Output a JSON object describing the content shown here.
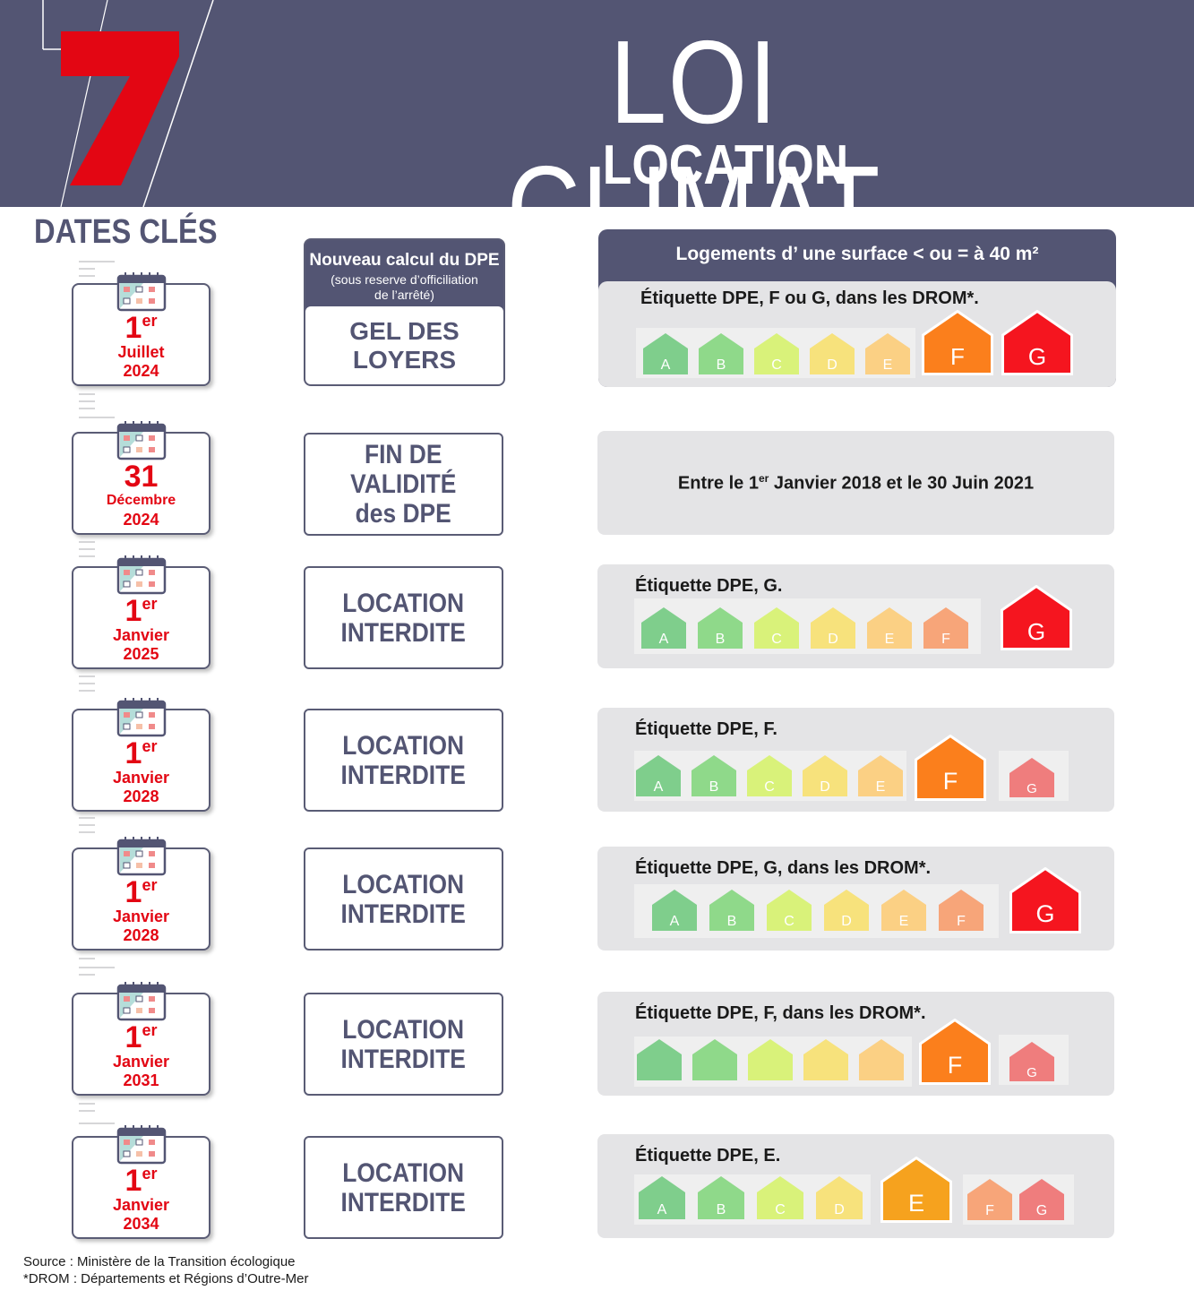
{
  "header": {
    "number": "7",
    "title": "LOI CLIMAT",
    "subtitle": "LOCATION",
    "section": "DATES CLÉS"
  },
  "colors": {
    "header_bg": "#535573",
    "accent_red": "#e30613",
    "A": "#7fce8c",
    "B": "#8fd98a",
    "C": "#d9f27a",
    "D": "#f7e27c",
    "E": "#fbd084",
    "F": "#f7a579",
    "G": "#ef7d7d",
    "F_active": "#fb7f1c",
    "G_active": "#f5151f",
    "E_active": "#f6a21e"
  },
  "rows": [
    {
      "day": "1",
      "sup": "er",
      "month": "Juillet",
      "year": "2024"
    },
    {
      "day": "31",
      "sup": "",
      "month": "Décembre",
      "year": "2024"
    },
    {
      "day": "1",
      "sup": "er",
      "month": "Janvier",
      "year": "2025"
    },
    {
      "day": "1",
      "sup": "er",
      "month": "Janvier",
      "year": "2028"
    },
    {
      "day": "1",
      "sup": "er",
      "month": "Janvier",
      "year": "2028"
    },
    {
      "day": "1",
      "sup": "er",
      "month": "Janvier",
      "year": "2031"
    },
    {
      "day": "1",
      "sup": "er",
      "month": "Janvier",
      "year": "2034"
    }
  ],
  "calc": {
    "title": "Nouveau calcul du DPE",
    "note1": "(sous reserve d’officiliation",
    "note2": "de l’arrêté)",
    "line1": "GEL DES",
    "line2": "LOYERS"
  },
  "mid": [
    {
      "line1": "FIN DE",
      "line2": "VALIDITÉ",
      "line3": "des DPE"
    },
    {
      "line1": "LOCATION",
      "line2": "INTERDITE"
    },
    {
      "line1": "LOCATION",
      "line2": "INTERDITE"
    },
    {
      "line1": "LOCATION",
      "line2": "INTERDITE"
    },
    {
      "line1": "LOCATION",
      "line2": "INTERDITE"
    },
    {
      "line1": "LOCATION",
      "line2": "INTERDITE"
    }
  ],
  "panels": {
    "p1_header": "Logements d’ une surface < ou = à 40 m²",
    "p1_label": "Étiquette DPE, F ou G, dans les DROM*.",
    "p2_text_a": "Entre le 1",
    "p2_text_sup": "er",
    "p2_text_b": " Janvier 2018 et le 30 Juin 2021",
    "p3_label": "Étiquette DPE, G.",
    "p4_label": "Étiquette DPE, F.",
    "p5_label": "Étiquette DPE, G, dans les DROM*.",
    "p6_label": "Étiquette DPE, F, dans les DROM*.",
    "p7_label": "Étiquette DPE, E."
  },
  "letters": {
    "A": "A",
    "B": "B",
    "C": "C",
    "D": "D",
    "E": "E",
    "F": "F",
    "G": "G"
  },
  "footer": {
    "source": "Source : Ministère de la Transition écologique",
    "drom": "*DROM : Départements et Régions d’Outre-Mer"
  }
}
